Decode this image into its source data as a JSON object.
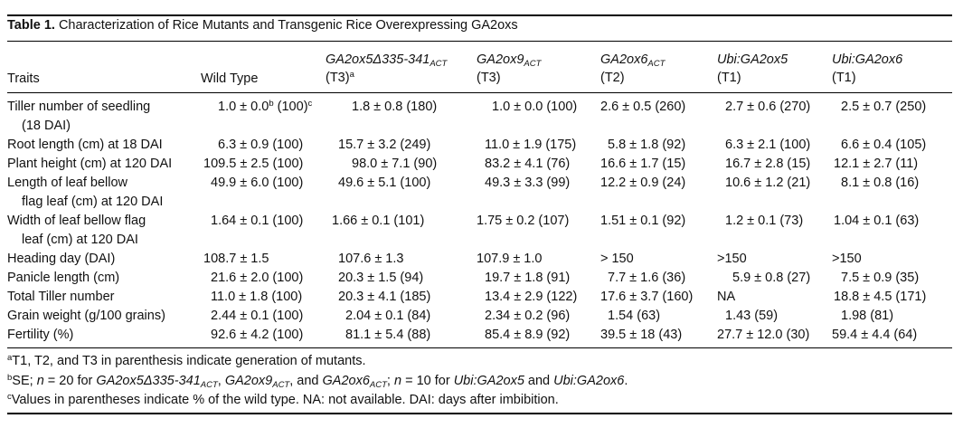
{
  "table": {
    "label": "Table 1.",
    "title": "Characterization of Rice Mutants and Transgenic Rice Overexpressing GA2oxs",
    "columns": {
      "traits": "Traits",
      "wild_type": "Wild Type",
      "c1_name": "GA2ox5Δ335-341",
      "c1_sub": "ACT",
      "c1_gen": "(T3)",
      "c1_gen_sup": "a",
      "c2_name": "GA2ox9",
      "c2_sub": "ACT",
      "c2_gen": "(T3)",
      "c3_name": "GA2ox6",
      "c3_sub": "ACT",
      "c3_gen": "(T2)",
      "c4_name": "Ubi:GA2ox5",
      "c4_gen": "(T1)",
      "c5_name": "Ubi:GA2ox6",
      "c5_gen": "(T1)"
    },
    "rows": [
      {
        "trait": "Tiller number of seedling",
        "trait2": "(18 DAI)",
        "wt": "1.0 ± 0.0",
        "wt_sup": "b",
        "wt_tail": " (100)",
        "wt_sup2": "c",
        "c1": "1.8 ± 0.8 (180)",
        "c2": "1.0 ± 0.0 (100)",
        "c3": "2.6 ± 0.5 (260)",
        "c4": "2.7 ± 0.6 (270)",
        "c5": "2.5 ± 0.7 (250)"
      },
      {
        "trait": "Root length (cm) at 18 DAI",
        "wt": "6.3 ± 0.9 (100)",
        "c1": "15.7 ± 3.2 (249)",
        "c2": "11.0 ± 1.9 (175)",
        "c3": "5.8 ± 1.8 (92)",
        "c4": "6.3 ± 2.1 (100)",
        "c5": "6.6 ± 0.4 (105)"
      },
      {
        "trait": "Plant height (cm) at 120 DAI",
        "wt": "109.5 ± 2.5 (100)",
        "c1": "98.0 ± 7.1 (90)",
        "c2": "83.2 ± 4.1 (76)",
        "c3": "16.6 ± 1.7 (15)",
        "c4": "16.7 ± 2.8 (15)",
        "c5": "12.1 ± 2.7 (11)"
      },
      {
        "trait": "Length of leaf bellow",
        "trait2": "flag leaf (cm) at 120 DAI",
        "wt": "49.9 ± 6.0 (100)",
        "c1": "49.6 ± 5.1 (100)",
        "c2": "49.3 ± 3.3 (99)",
        "c3": "12.2 ± 0.9 (24)",
        "c4": "10.6 ± 1.2 (21)",
        "c5": "8.1 ± 0.8 (16)"
      },
      {
        "trait": "Width of leaf bellow flag",
        "trait2": "leaf (cm) at 120 DAI",
        "wt": "1.64 ± 0.1 (100)",
        "c1": "1.66 ± 0.1 (101)",
        "c2": "1.75 ± 0.2 (107)",
        "c3": "1.51 ± 0.1 (92)",
        "c4": "1.2 ± 0.1 (73)",
        "c5": "1.04 ± 0.1 (63)"
      },
      {
        "trait": "Heading day (DAI)",
        "wt": "108.7 ± 1.5",
        "c1": "107.6 ± 1.3",
        "c2": "107.9 ± 1.0",
        "c3": "> 150",
        "c4": ">150",
        "c5": ">150"
      },
      {
        "trait": "Panicle length (cm)",
        "wt": "21.6 ± 2.0 (100)",
        "c1": "20.3 ± 1.5 (94)",
        "c2": "19.7 ± 1.8 (91)",
        "c3": "7.7 ± 1.6 (36)",
        "c4": "5.9 ± 0.8 (27)",
        "c5": "7.5 ± 0.9 (35)"
      },
      {
        "trait": "Total Tiller number",
        "wt": "11.0 ± 1.8 (100)",
        "c1": "20.3 ± 4.1 (185)",
        "c2": "13.4 ± 2.9 (122)",
        "c3": "17.6 ± 3.7 (160)",
        "c4": "NA",
        "c5": "18.8 ± 4.5 (171)"
      },
      {
        "trait": "Grain weight (g/100 grains)",
        "wt": "2.44 ± 0.1 (100)",
        "c1": "2.04 ± 0.1 (84)",
        "c2": "2.34 ± 0.2 (96)",
        "c3": "1.54 (63)",
        "c4": "1.43 (59)",
        "c5": "1.98 (81)"
      },
      {
        "trait": "Fertility (%)",
        "wt": "92.6 ± 4.2 (100)",
        "c1": "81.1 ± 5.4 (88)",
        "c2": "85.4 ± 8.9 (92)",
        "c3": "39.5 ± 18 (43)",
        "c4": "27.7 ± 12.0 (30)",
        "c5": "59.4 ± 4.4 (64)"
      }
    ],
    "footnotes": {
      "a_mark": "a",
      "a_text": "T1, T2, and T3 in parenthesis indicate generation of mutants.",
      "b_mark": "b",
      "b_p1": "SE; ",
      "b_n1": "n",
      "b_p2": " = 20 for ",
      "b_g1": "GA2ox5Δ335-341",
      "b_g1s": "ACT",
      "b_sep1": ", ",
      "b_g2": "GA2ox9",
      "b_g2s": "ACT",
      "b_sep2": ", and ",
      "b_g3": "GA2ox6",
      "b_g3s": "ACT",
      "b_sep3": "; ",
      "b_n2": "n",
      "b_p3": " = 10 for ",
      "b_g4": "Ubi:GA2ox5",
      "b_p4": " and ",
      "b_g5": "Ubi:GA2ox6",
      "b_p5": ".",
      "c_mark": "c",
      "c_text": "Values in parentheses indicate % of the wild type. NA: not available. DAI: days after imbibition."
    }
  }
}
